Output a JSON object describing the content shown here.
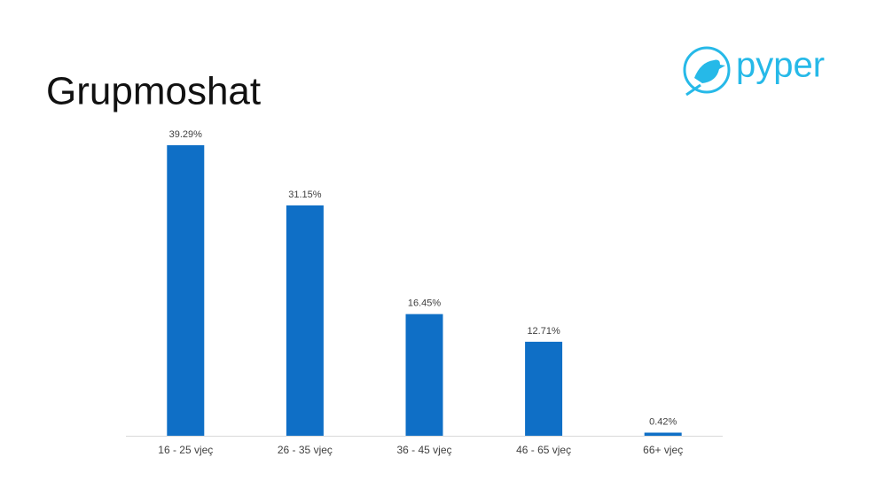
{
  "logo": "pyper",
  "chart_data": {
    "type": "bar",
    "title": "Grupmoshat",
    "categories": [
      "16 - 25 vjeç",
      "26 - 35 vjeç",
      "36 - 45 vjeç",
      "46 - 65 vjeç",
      "66+ vjeç"
    ],
    "values": [
      39.29,
      31.15,
      16.45,
      12.71,
      0.42
    ],
    "value_labels": [
      "39.29%",
      "31.15%",
      "16.45%",
      "12.71%",
      "0.42%"
    ],
    "color": "#0f6fc6",
    "ylim": [
      0,
      40
    ]
  }
}
